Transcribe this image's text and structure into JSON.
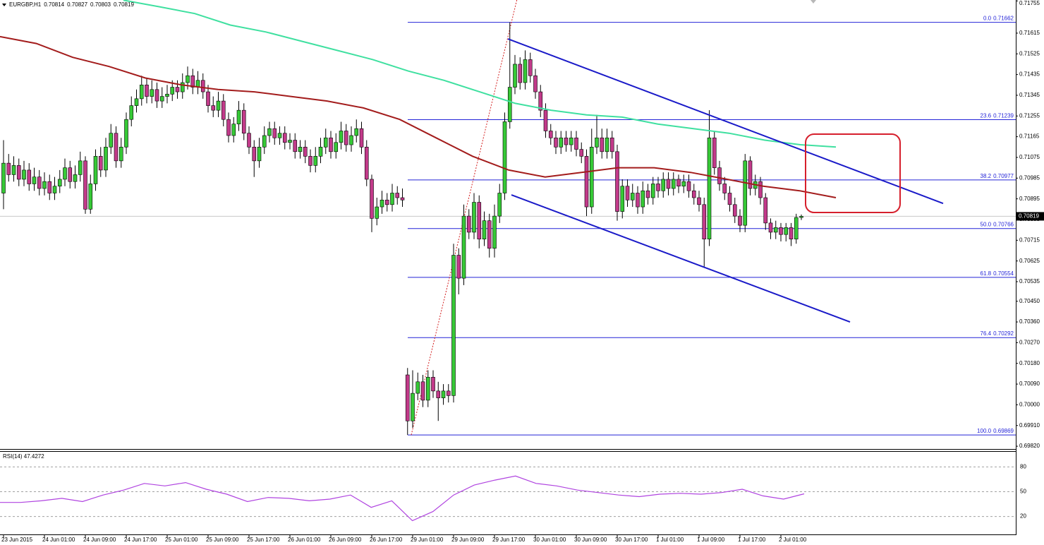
{
  "chart_data": [
    {
      "type": "candlestick",
      "title": "EURGBP,H1",
      "categories": [
        "23 Jun 2015",
        null,
        null,
        null,
        null,
        null,
        null,
        null,
        "24 Jun 01:00",
        null,
        null,
        null,
        null,
        null,
        null,
        null,
        "24 Jun 09:00",
        null,
        null,
        null,
        null,
        null,
        null,
        null,
        "24 Jun 17:00",
        null,
        null,
        null,
        null,
        null,
        null,
        null,
        "25 Jun 01:00",
        null,
        null,
        null,
        null,
        null,
        null,
        null,
        "25 Jun 09:00",
        null,
        null,
        null,
        null,
        null,
        null,
        null,
        "25 Jun 17:00",
        null,
        null,
        null,
        null,
        null,
        null,
        null,
        "26 Jun 01:00",
        null,
        null,
        null,
        null,
        null,
        null,
        null,
        "26 Jun 09:00",
        null,
        null,
        null,
        null,
        null,
        null,
        null,
        "26 Jun 17:00",
        null,
        null,
        null,
        null,
        null,
        null,
        null,
        "29 Jun 01:00",
        null,
        null,
        null,
        null,
        null,
        null,
        null,
        "29 Jun 09:00",
        null,
        null,
        null,
        null,
        null,
        null,
        null,
        "29 Jun 17:00",
        null,
        null,
        null,
        null,
        null,
        null,
        null,
        "30 Jun 01:00",
        null,
        null,
        null,
        null,
        null,
        null,
        null,
        "30 Jun 09:00",
        null,
        null,
        null,
        null,
        null,
        null,
        null,
        "30 Jun 17:00",
        null,
        null,
        null,
        null,
        null,
        null,
        null,
        "1 Jul 01:00",
        null,
        null,
        null,
        null,
        null,
        null,
        null,
        "1 Jul 09:00",
        null,
        null,
        null,
        null,
        null,
        null,
        null,
        "1 Jul 17:00",
        null,
        null,
        null,
        null,
        null,
        null,
        null,
        "2 Jul 01:00",
        null,
        null,
        null,
        null
      ],
      "open": [
        0.7092,
        0.7105,
        0.71,
        0.7104,
        0.7098,
        0.7102,
        0.7096,
        0.7099,
        0.7094,
        0.7097,
        0.7092,
        0.7095,
        0.7098,
        0.7103,
        0.7097,
        0.71,
        0.7106,
        0.7085,
        0.7096,
        0.7108,
        0.7102,
        0.7112,
        0.7118,
        0.7106,
        0.7112,
        0.7124,
        0.713,
        0.7133,
        0.7139,
        0.7134,
        0.7137,
        0.7132,
        0.7134,
        0.7135,
        0.7138,
        0.7136,
        0.714,
        0.7143,
        0.7138,
        0.7141,
        0.7136,
        0.713,
        0.7128,
        0.7132,
        0.7124,
        0.7117,
        0.7122,
        0.7128,
        0.7118,
        0.7112,
        0.7106,
        0.7112,
        0.7117,
        0.712,
        0.7116,
        0.7118,
        0.7114,
        0.7115,
        0.711,
        0.7112,
        0.7108,
        0.7104,
        0.7108,
        0.7112,
        0.7116,
        0.711,
        0.7114,
        0.7119,
        0.7113,
        0.7117,
        0.712,
        0.7112,
        0.7098,
        0.7081,
        0.7086,
        0.7089,
        0.7087,
        0.7092,
        0.709,
        0.7013,
        0.6993,
        0.7005,
        0.701,
        0.7002,
        0.7012,
        0.7006,
        0.7003,
        0.7006,
        0.7004,
        0.7065,
        0.7055,
        0.7082,
        0.7075,
        0.7088,
        0.7072,
        0.708,
        0.7068,
        0.7082,
        0.7092,
        0.7123,
        0.7138,
        0.7148,
        0.714,
        0.715,
        0.7143,
        0.7136,
        0.7128,
        0.7119,
        0.7116,
        0.7112,
        0.7116,
        0.7113,
        0.7116,
        0.7111,
        0.7108,
        0.7086,
        0.7112,
        0.7116,
        0.711,
        0.7116,
        0.711,
        0.7084,
        0.7095,
        0.7089,
        0.7092,
        0.7086,
        0.7093,
        0.709,
        0.7096,
        0.7093,
        0.7098,
        0.7094,
        0.7098,
        0.7095,
        0.7097,
        0.7093,
        0.709,
        0.7087,
        0.7072,
        0.7116,
        0.7103,
        0.7096,
        0.7092,
        0.7087,
        0.7082,
        0.7078,
        0.7106,
        0.7094,
        0.7097,
        0.709,
        0.7079,
        0.7075,
        0.7077,
        0.7074,
        0.7077,
        0.7072,
        0.70814
      ],
      "high": [
        0.7115,
        0.7109,
        0.7108,
        0.7107,
        0.7106,
        0.7105,
        0.7103,
        0.7102,
        0.7101,
        0.71,
        0.7099,
        0.7102,
        0.7107,
        0.7106,
        0.7104,
        0.711,
        0.7108,
        0.71,
        0.7111,
        0.7112,
        0.7116,
        0.7122,
        0.7121,
        0.7116,
        0.7127,
        0.7134,
        0.7137,
        0.7143,
        0.7142,
        0.7141,
        0.714,
        0.7138,
        0.7139,
        0.7141,
        0.7141,
        0.7144,
        0.7147,
        0.7146,
        0.7145,
        0.7144,
        0.7139,
        0.7134,
        0.7136,
        0.7135,
        0.7127,
        0.7125,
        0.7132,
        0.7131,
        0.7121,
        0.7115,
        0.7116,
        0.7121,
        0.7123,
        0.7123,
        0.7121,
        0.7121,
        0.7118,
        0.7118,
        0.7115,
        0.7115,
        0.7111,
        0.7112,
        0.7116,
        0.712,
        0.7119,
        0.7118,
        0.7123,
        0.7122,
        0.7121,
        0.7124,
        0.7123,
        0.7115,
        0.71,
        0.709,
        0.7093,
        0.7092,
        0.7096,
        0.7095,
        0.7094,
        0.7016,
        0.7015,
        0.7014,
        0.7013,
        0.7015,
        0.7015,
        0.701,
        0.7009,
        0.7009,
        0.707,
        0.7068,
        0.7087,
        0.7085,
        0.7092,
        0.7091,
        0.7084,
        0.7083,
        0.7087,
        0.7096,
        0.7127,
        0.71662,
        0.7152,
        0.7151,
        0.7154,
        0.7153,
        0.7146,
        0.7139,
        0.7131,
        0.7122,
        0.7119,
        0.7119,
        0.7119,
        0.7119,
        0.7119,
        0.7114,
        0.7111,
        0.712,
        0.7126,
        0.712,
        0.712,
        0.7119,
        0.7113,
        0.7098,
        0.7098,
        0.7096,
        0.7095,
        0.7097,
        0.7096,
        0.7099,
        0.7099,
        0.7101,
        0.7101,
        0.7101,
        0.71,
        0.71,
        0.71,
        0.7096,
        0.7093,
        0.709,
        0.7128,
        0.7119,
        0.7106,
        0.7099,
        0.7095,
        0.709,
        0.7085,
        0.7109,
        0.7108,
        0.71,
        0.7099,
        0.7092,
        0.7081,
        0.708,
        0.7079,
        0.7079,
        0.7079,
        0.7083,
        0.70827
      ],
      "low": [
        0.7085,
        0.7097,
        0.7097,
        0.7095,
        0.7095,
        0.7093,
        0.7093,
        0.7091,
        0.7091,
        0.7089,
        0.7089,
        0.7092,
        0.7095,
        0.7094,
        0.7094,
        0.7097,
        0.7083,
        0.7083,
        0.7093,
        0.7099,
        0.7099,
        0.7109,
        0.7103,
        0.7103,
        0.7109,
        0.7121,
        0.7127,
        0.713,
        0.7131,
        0.7131,
        0.7129,
        0.7129,
        0.7131,
        0.7132,
        0.7133,
        0.7133,
        0.7137,
        0.7135,
        0.7135,
        0.7133,
        0.7127,
        0.7125,
        0.7125,
        0.7121,
        0.7114,
        0.7114,
        0.7119,
        0.7115,
        0.7109,
        0.7099,
        0.7103,
        0.7109,
        0.7114,
        0.7113,
        0.7113,
        0.7111,
        0.7111,
        0.7107,
        0.7107,
        0.7105,
        0.7101,
        0.7101,
        0.7105,
        0.7109,
        0.7107,
        0.7107,
        0.7111,
        0.711,
        0.711,
        0.7114,
        0.7109,
        0.7095,
        0.7075,
        0.7078,
        0.7083,
        0.7084,
        0.7084,
        0.7087,
        0.7086,
        0.69869,
        0.699,
        0.7002,
        0.6999,
        0.6999,
        0.7003,
        0.6993,
        0.7,
        0.7001,
        0.7001,
        0.7048,
        0.7052,
        0.7072,
        0.7072,
        0.7068,
        0.7069,
        0.7064,
        0.7064,
        0.7079,
        0.7089,
        0.712,
        0.7135,
        0.7137,
        0.7137,
        0.714,
        0.7133,
        0.7125,
        0.7116,
        0.7113,
        0.7109,
        0.7109,
        0.711,
        0.711,
        0.7108,
        0.7105,
        0.7082,
        0.7083,
        0.7109,
        0.7107,
        0.7107,
        0.7107,
        0.708,
        0.7081,
        0.7086,
        0.7086,
        0.7083,
        0.7083,
        0.7087,
        0.7087,
        0.709,
        0.709,
        0.7091,
        0.7091,
        0.7092,
        0.7092,
        0.709,
        0.7087,
        0.7084,
        0.706,
        0.7069,
        0.71,
        0.7093,
        0.7089,
        0.7084,
        0.7079,
        0.7075,
        0.7075,
        0.7091,
        0.7091,
        0.7087,
        0.7076,
        0.7072,
        0.7072,
        0.7071,
        0.7071,
        0.7069,
        0.707,
        0.70803
      ],
      "close": [
        0.7105,
        0.71,
        0.7104,
        0.7098,
        0.7102,
        0.7096,
        0.7099,
        0.7094,
        0.7097,
        0.7092,
        0.7095,
        0.7098,
        0.7103,
        0.7097,
        0.71,
        0.7106,
        0.7085,
        0.7096,
        0.7108,
        0.7102,
        0.7112,
        0.7118,
        0.7106,
        0.7112,
        0.7124,
        0.713,
        0.7133,
        0.7139,
        0.7134,
        0.7137,
        0.7132,
        0.7134,
        0.7135,
        0.7138,
        0.7136,
        0.714,
        0.7143,
        0.7138,
        0.7141,
        0.7136,
        0.713,
        0.7128,
        0.7132,
        0.7124,
        0.7117,
        0.7122,
        0.7128,
        0.7118,
        0.7112,
        0.7106,
        0.7112,
        0.7117,
        0.712,
        0.7116,
        0.7118,
        0.7114,
        0.7115,
        0.711,
        0.7112,
        0.7108,
        0.7104,
        0.7108,
        0.7112,
        0.7116,
        0.711,
        0.7114,
        0.7119,
        0.7113,
        0.7117,
        0.712,
        0.7112,
        0.7098,
        0.7081,
        0.7086,
        0.7089,
        0.7087,
        0.7092,
        0.709,
        0.7089,
        0.6993,
        0.7005,
        0.701,
        0.7002,
        0.7012,
        0.7006,
        0.7003,
        0.7006,
        0.7004,
        0.7065,
        0.7055,
        0.7082,
        0.7075,
        0.7088,
        0.7072,
        0.708,
        0.7068,
        0.7082,
        0.7092,
        0.7123,
        0.7138,
        0.7148,
        0.714,
        0.715,
        0.7143,
        0.7136,
        0.7128,
        0.7119,
        0.7116,
        0.7112,
        0.7116,
        0.7113,
        0.7116,
        0.7111,
        0.7108,
        0.7086,
        0.7112,
        0.7116,
        0.711,
        0.7116,
        0.711,
        0.7084,
        0.7095,
        0.7089,
        0.7092,
        0.7086,
        0.7093,
        0.709,
        0.7096,
        0.7093,
        0.7098,
        0.7094,
        0.7098,
        0.7095,
        0.7097,
        0.7093,
        0.709,
        0.7087,
        0.7072,
        0.7116,
        0.7103,
        0.7096,
        0.7092,
        0.7087,
        0.7082,
        0.7078,
        0.7106,
        0.7094,
        0.7097,
        0.709,
        0.7079,
        0.7075,
        0.7077,
        0.7074,
        0.7077,
        0.7072,
        0.70814,
        0.70819
      ],
      "up_color": "#36c936",
      "down_color": "#c23a8a",
      "ylim": [
        0.69808,
        0.71759
      ],
      "yticks": [
        0.71755,
        0.71615,
        0.71525,
        0.71435,
        0.71345,
        0.71255,
        0.71165,
        0.71075,
        0.70985,
        0.70895,
        0.70805,
        0.70715,
        0.70625,
        0.70535,
        {
          "value": 0.7045,
          "label": "0.70450"
        },
        {
          "value": 0.7036,
          "label": "0.70360"
        },
        {
          "value": 0.7027,
          "label": "0.70270"
        },
        {
          "value": 0.7018,
          "label": "0.70180"
        },
        {
          "value": 0.7009,
          "label": "0.70090"
        },
        {
          "value": 0.7,
          "label": "0.70000"
        },
        {
          "value": 0.6991,
          "label": "0.69910"
        },
        {
          "value": 0.6982,
          "label": "0.69820"
        }
      ],
      "moving_averages": [
        {
          "color": "#a31c1c",
          "values": [
            0.716,
            0.7157,
            0.7151,
            0.7147,
            0.7142,
            0.7139,
            0.7137,
            0.7136,
            0.7134,
            0.7132,
            0.7129,
            0.7124,
            0.7116,
            0.7108,
            0.7102,
            0.7099,
            0.7101,
            0.7103,
            0.7103,
            0.7101,
            0.7098,
            0.7095,
            0.7093,
            0.709
          ]
        },
        {
          "color": "#3fe0a0",
          "values": [
            0.71758,
            0.7173,
            0.717,
            0.7165,
            0.7162,
            0.7158,
            0.7154,
            0.715,
            0.7145,
            0.7141,
            0.7136,
            0.7131,
            0.7128,
            0.7126,
            0.7125,
            0.7122,
            0.712,
            0.7118,
            0.7115,
            0.7113,
            0.7112
          ]
        }
      ],
      "trendlines": [
        {
          "color": "#1a1ac8",
          "values": [
            0.7159,
            0.70875
          ]
        },
        {
          "color": "#1a1ac8",
          "values": [
            0.70912,
            0.7036
          ]
        }
      ],
      "fibonacci": {
        "color": "#2424d8",
        "swing_color": "#d42020",
        "levels": [
          {
            "ratio": {
              "value": 0,
              "label": "0.0"
            },
            "price": 0.71662
          },
          {
            "ratio": 23.6,
            "price": 0.71239
          },
          {
            "ratio": 38.2,
            "price": 0.70977
          },
          {
            "ratio": {
              "value": 50,
              "label": "50.0"
            },
            "price": 0.70766
          },
          {
            "ratio": 61.8,
            "price": 0.70554
          },
          {
            "ratio": 76.4,
            "price": 0.70292
          },
          {
            "ratio": {
              "value": 100,
              "label": "100.0"
            },
            "price": 0.69869
          }
        ]
      }
    },
    {
      "type": "line",
      "title": "RSI(14) 47.4272",
      "color": "#b044e0",
      "values": [
        37,
        37,
        39,
        42,
        38,
        46,
        52,
        60,
        57,
        61,
        53,
        47,
        38,
        43,
        42,
        39,
        41,
        46,
        31,
        39,
        15,
        26,
        46,
        58,
        64,
        69,
        60,
        57,
        52,
        49,
        46,
        44,
        47,
        48,
        47,
        49,
        53,
        45,
        41,
        47.4272
      ],
      "ylim": [
        0,
        100
      ],
      "yticks": [
        20,
        50,
        80
      ]
    }
  ]
}
